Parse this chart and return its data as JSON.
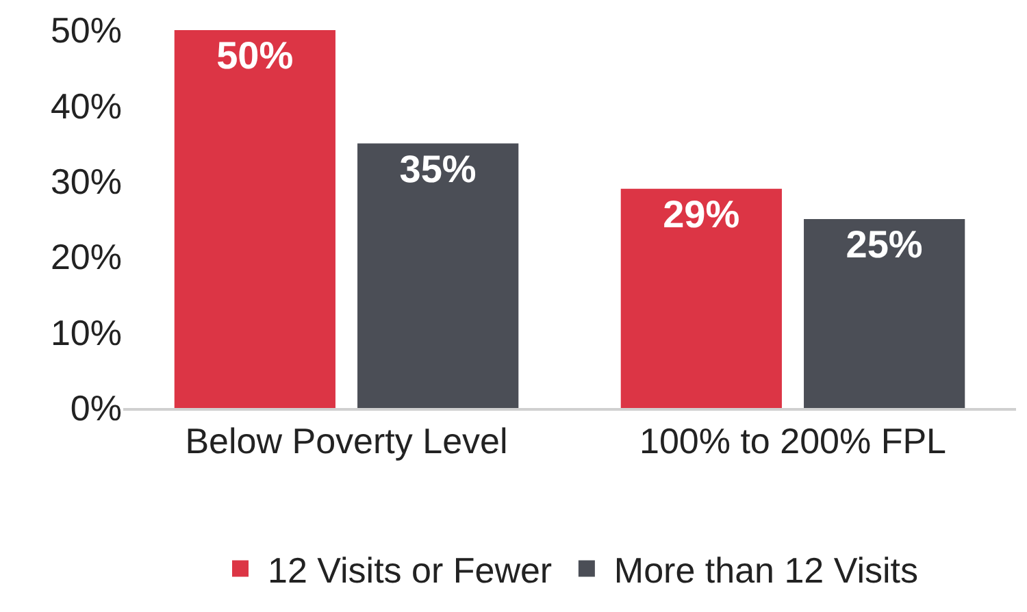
{
  "chart_data": {
    "type": "bar",
    "categories": [
      "Below Poverty Level",
      "100% to 200% FPL"
    ],
    "series": [
      {
        "name": "12 Visits or Fewer",
        "color": "#dc3545",
        "values": [
          50,
          29
        ],
        "value_labels": [
          "50%",
          "29%"
        ]
      },
      {
        "name": "More than 12 Visits",
        "color": "#4b4e56",
        "values": [
          35,
          25
        ],
        "value_labels": [
          "35%",
          "25%"
        ]
      }
    ],
    "ylim": [
      0,
      50
    ],
    "yticks": [
      {
        "value": 0,
        "label": "0%"
      },
      {
        "value": 10,
        "label": "10%"
      },
      {
        "value": 20,
        "label": "20%"
      },
      {
        "value": 30,
        "label": "30%"
      },
      {
        "value": 40,
        "label": "40%"
      },
      {
        "value": 50,
        "label": "50%"
      }
    ],
    "grid": false,
    "legend": "bottom"
  }
}
